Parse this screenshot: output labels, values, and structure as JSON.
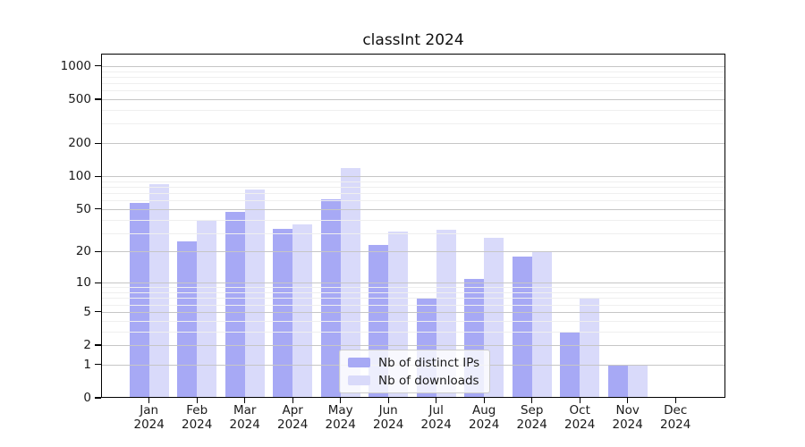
{
  "title": "classInt 2024",
  "chart_data": {
    "type": "bar",
    "title": "classInt 2024",
    "categories": [
      "Jan 2024",
      "Feb 2024",
      "Mar 2024",
      "Apr 2024",
      "May 2024",
      "Jun 2024",
      "Jul 2024",
      "Aug 2024",
      "Sep 2024",
      "Oct 2024",
      "Nov 2024",
      "Dec 2024"
    ],
    "series": [
      {
        "name": "Nb of distinct IPs",
        "color": "#a7a9f5",
        "values": [
          57,
          25,
          47,
          33,
          61,
          23,
          7,
          11,
          18,
          3,
          1,
          0
        ]
      },
      {
        "name": "Nb of downloads",
        "color": "#d9dafa",
        "values": [
          84,
          40,
          76,
          36,
          119,
          31,
          32,
          27,
          20,
          7,
          1,
          0
        ]
      }
    ],
    "yscale": "log1p",
    "y_ticks": [
      0,
      1,
      2,
      5,
      10,
      20,
      50,
      100,
      200,
      500,
      1000
    ],
    "y_minor_gridlines": [
      3,
      4,
      6,
      7,
      8,
      9,
      30,
      40,
      60,
      70,
      80,
      90,
      300,
      400,
      600,
      700,
      800,
      900
    ],
    "ylim": [
      0,
      1200
    ],
    "xlabel": "",
    "ylabel": "",
    "grid": true,
    "legend_position": "lower center"
  }
}
